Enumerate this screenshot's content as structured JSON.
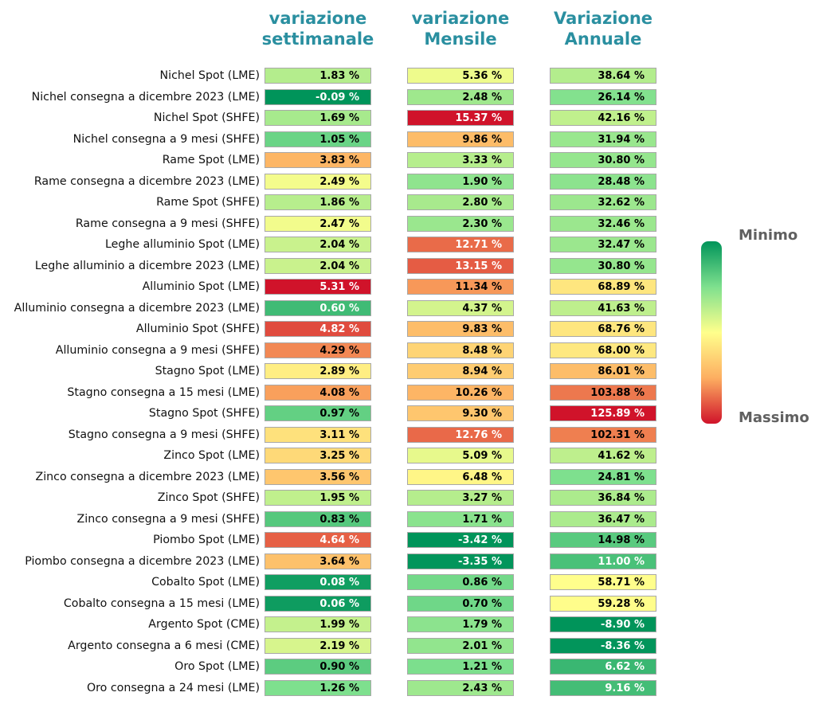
{
  "chart_data": {
    "type": "table",
    "columns": [
      {
        "title_lines": [
          "variazione",
          "settimanale"
        ]
      },
      {
        "title_lines": [
          "variazione",
          "Mensile"
        ]
      },
      {
        "title_lines": [
          "Variazione",
          "Annuale"
        ]
      }
    ],
    "unit_suffix": " %",
    "rows": [
      {
        "label": "Nichel Spot (LME)",
        "values": [
          1.83,
          5.36,
          38.64
        ]
      },
      {
        "label": "Nichel consegna a dicembre 2023 (LME)",
        "values": [
          -0.09,
          2.48,
          26.14
        ]
      },
      {
        "label": "Nichel Spot (SHFE)",
        "values": [
          1.69,
          15.37,
          42.16
        ]
      },
      {
        "label": "Nichel consegna a 9 mesi (SHFE)",
        "values": [
          1.05,
          9.86,
          31.94
        ]
      },
      {
        "label": "Rame Spot (LME)",
        "values": [
          3.83,
          3.33,
          30.8
        ]
      },
      {
        "label": "Rame consegna a dicembre 2023 (LME)",
        "values": [
          2.49,
          1.9,
          28.48
        ]
      },
      {
        "label": "Rame Spot (SHFE)",
        "values": [
          1.86,
          2.8,
          32.62
        ]
      },
      {
        "label": "Rame consegna a 9 mesi (SHFE)",
        "values": [
          2.47,
          2.3,
          32.46
        ]
      },
      {
        "label": "Leghe alluminio Spot (LME)",
        "values": [
          2.04,
          12.71,
          32.47
        ]
      },
      {
        "label": "Leghe alluminio a dicembre 2023 (LME)",
        "values": [
          2.04,
          13.15,
          30.8
        ]
      },
      {
        "label": "Alluminio Spot (LME)",
        "values": [
          5.31,
          11.34,
          68.89
        ]
      },
      {
        "label": "Alluminio consegna a dicembre 2023 (LME)",
        "values": [
          0.6,
          4.37,
          41.63
        ]
      },
      {
        "label": "Alluminio Spot (SHFE)",
        "values": [
          4.82,
          9.83,
          68.76
        ]
      },
      {
        "label": "Alluminio consegna a 9 mesi (SHFE)",
        "values": [
          4.29,
          8.48,
          68.0
        ]
      },
      {
        "label": "Stagno Spot (LME)",
        "values": [
          2.89,
          8.94,
          86.01
        ]
      },
      {
        "label": "Stagno consegna a 15 mesi (LME)",
        "values": [
          4.08,
          10.26,
          103.88
        ]
      },
      {
        "label": "Stagno Spot (SHFE)",
        "values": [
          0.97,
          9.3,
          125.89
        ]
      },
      {
        "label": "Stagno consegna a 9 mesi (SHFE)",
        "values": [
          3.11,
          12.76,
          102.31
        ]
      },
      {
        "label": "Zinco Spot (LME)",
        "values": [
          3.25,
          5.09,
          41.62
        ]
      },
      {
        "label": "Zinco consegna a dicembre 2023 (LME)",
        "values": [
          3.56,
          6.48,
          24.81
        ]
      },
      {
        "label": "Zinco Spot (SHFE)",
        "values": [
          1.95,
          3.27,
          36.84
        ]
      },
      {
        "label": "Zinco consegna a 9 mesi (SHFE)",
        "values": [
          0.83,
          1.71,
          36.47
        ]
      },
      {
        "label": "Piombo Spot (LME)",
        "values": [
          4.64,
          -3.42,
          14.98
        ]
      },
      {
        "label": "Piombo consegna a dicembre 2023 (LME)",
        "values": [
          3.64,
          -3.35,
          11.0
        ]
      },
      {
        "label": "Cobalto Spot (LME)",
        "values": [
          0.08,
          0.86,
          58.71
        ]
      },
      {
        "label": "Cobalto consegna a 15 mesi (LME)",
        "values": [
          0.06,
          0.7,
          59.28
        ]
      },
      {
        "label": "Argento Spot (CME)",
        "values": [
          1.99,
          1.79,
          -8.9
        ]
      },
      {
        "label": "Argento consegna a 6 mesi (CME)",
        "values": [
          2.19,
          2.01,
          -8.36
        ]
      },
      {
        "label": "Oro Spot (LME)",
        "values": [
          0.9,
          1.21,
          6.62
        ]
      },
      {
        "label": "Oro consegna a 24 mesi (LME)",
        "values": [
          1.26,
          2.43,
          9.16
        ]
      }
    ],
    "legend": {
      "min_label": "Minimo",
      "max_label": "Massimo",
      "placement": "right"
    },
    "colorscale": [
      "#00945a",
      "#7ee08e",
      "#ffff8c",
      "#fdae61",
      "#d0132a"
    ]
  }
}
